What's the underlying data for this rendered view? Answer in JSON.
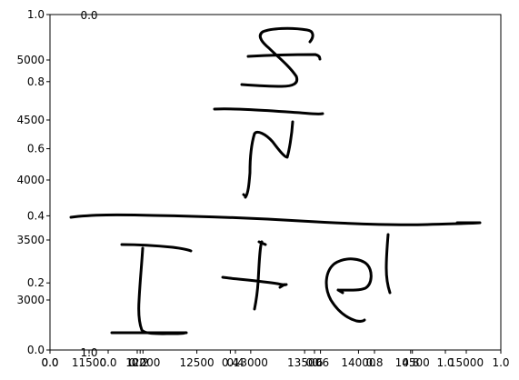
{
  "title_overflow": "0.0",
  "x_tick_labels_primary": [
    "0.0",
    "0.2",
    "0.4",
    "0.6",
    "0.8",
    "1.0"
  ],
  "x_tick_labels_secondary": [
    "0.0",
    "11500",
    "12000",
    "12500",
    "13000",
    "13500",
    "14000",
    "14500",
    "15000"
  ],
  "x_tick_labels_tertiary": [
    "0.0",
    "0.2",
    "0.4",
    "0.6",
    "0.8",
    "1.0"
  ],
  "y_tick_labels_primary": [
    "0.0",
    "0.2",
    "0.4",
    "0.6",
    "0.8",
    "1.0"
  ],
  "y_tick_labels_secondary": [
    "3000",
    "3500",
    "4000",
    "4500",
    "5000"
  ],
  "bottom_overflow": "1.0",
  "colors": {
    "ink": "#000000",
    "background": "#ffffff"
  },
  "content": "handwritten fraction with stroke numerator and 1+e denominator"
}
